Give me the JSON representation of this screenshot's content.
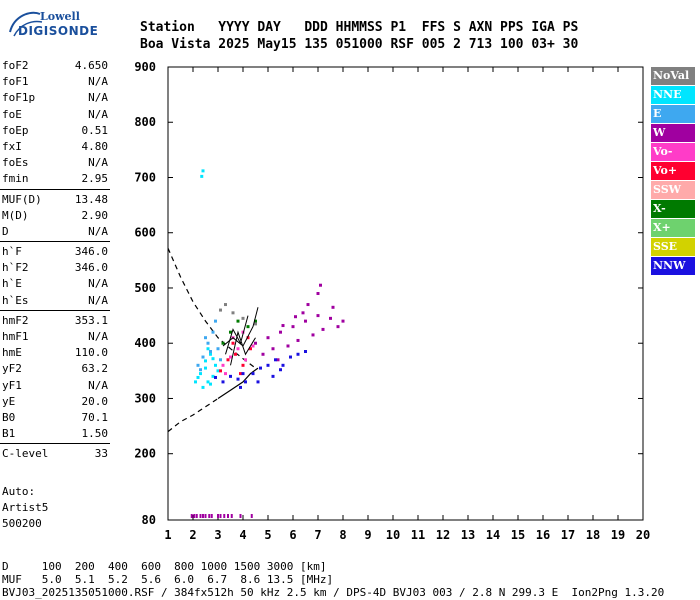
{
  "logo": {
    "line1": "Lowell",
    "line2": "DIGISONDE"
  },
  "header": {
    "line1": "Station   YYYY DAY   DDD HHMMSS P1  FFS S AXN PPS IGA PS",
    "line2": "Boa Vista 2025 May15 135 051000 RSF 005 2 713 100 03+ 30"
  },
  "params": [
    {
      "name": "foF2",
      "value": "4.650"
    },
    {
      "name": "foF1",
      "value": "N/A"
    },
    {
      "name": "foF1p",
      "value": "N/A"
    },
    {
      "name": "foE",
      "value": "N/A"
    },
    {
      "name": "foEp",
      "value": "0.51"
    },
    {
      "name": "fxI",
      "value": "4.80"
    },
    {
      "name": "foEs",
      "value": "N/A"
    },
    {
      "name": "fmin",
      "value": "2.95"
    },
    {
      "sep": true
    },
    {
      "name": "MUF(D)",
      "value": "13.48"
    },
    {
      "name": "M(D)",
      "value": "2.90"
    },
    {
      "name": "D",
      "value": "N/A"
    },
    {
      "sep": true
    },
    {
      "name": "h`F",
      "value": "346.0"
    },
    {
      "name": "h`F2",
      "value": "346.0"
    },
    {
      "name": "h`E",
      "value": "N/A"
    },
    {
      "name": "h`Es",
      "value": "N/A"
    },
    {
      "sep": true
    },
    {
      "name": "hmF2",
      "value": "353.1"
    },
    {
      "name": "hmF1",
      "value": "N/A"
    },
    {
      "name": "hmE",
      "value": "110.0"
    },
    {
      "name": "yF2",
      "value": "63.2"
    },
    {
      "name": "yF1",
      "value": "N/A"
    },
    {
      "name": "yE",
      "value": "20.0"
    },
    {
      "name": "B0",
      "value": "70.1"
    },
    {
      "name": "B1",
      "value": "1.50"
    },
    {
      "sep": true
    },
    {
      "name": "C-level",
      "value": "33"
    }
  ],
  "auto": {
    "line1": "Auto:",
    "line2": "Artist5",
    "line3": "500200"
  },
  "legend": [
    {
      "label": "NoVal",
      "color": "#808080"
    },
    {
      "label": "NNE",
      "color": "#00e5ff"
    },
    {
      "label": "E",
      "color": "#3ea8f0"
    },
    {
      "label": "W",
      "color": "#a000a0"
    },
    {
      "label": "Vo-",
      "color": "#ff3cc8"
    },
    {
      "label": "Vo+",
      "color": "#ff0030"
    },
    {
      "label": "SSW",
      "color": "#ffaaaa"
    },
    {
      "label": "X-",
      "color": "#007a00"
    },
    {
      "label": "X+",
      "color": "#6ed26e"
    },
    {
      "label": "SSE",
      "color": "#d2d200"
    },
    {
      "label": "NNW",
      "color": "#1a10e0"
    }
  ],
  "bottom": {
    "line1": "D     100  200  400  600  800 1000 1500 3000 [km]",
    "line2": "MUF   5.0  5.1  5.2  5.6  6.0  6.7  8.6 13.5 [MHz]",
    "line3": "BVJ03_2025135051000.RSF / 384fx512h 50 kHz 2.5 km / DPS-4D BVJ03 003 / 2.8 N 299.3 E  Ion2Png 1.3.20"
  },
  "chart_data": {
    "type": "scatter",
    "xlim": [
      1,
      20
    ],
    "ylim": [
      80,
      900
    ],
    "xticks": [
      1,
      2,
      3,
      4,
      5,
      6,
      7,
      8,
      9,
      10,
      11,
      12,
      13,
      14,
      15,
      16,
      17,
      18,
      19,
      20
    ],
    "yticks": [
      80,
      200,
      300,
      400,
      500,
      600,
      700,
      800,
      900
    ],
    "grid": false,
    "series": [
      {
        "name": "NNE",
        "color": "#00e5ff",
        "points": [
          [
            2.1,
            330
          ],
          [
            2.3,
            345
          ],
          [
            2.5,
            355
          ],
          [
            2.6,
            330
          ],
          [
            2.7,
            380
          ],
          [
            2.8,
            340
          ],
          [
            2.9,
            360
          ],
          [
            2.4,
            320
          ],
          [
            2.6,
            390
          ],
          [
            2.2,
            338
          ],
          [
            2.8,
            372
          ],
          [
            3.0,
            350
          ],
          [
            2.5,
            368
          ],
          [
            2.7,
            326
          ],
          [
            2.35,
            702
          ],
          [
            2.4,
            712
          ]
        ]
      },
      {
        "name": "E",
        "color": "#3ea8f0",
        "points": [
          [
            2.2,
            360
          ],
          [
            2.4,
            375
          ],
          [
            2.6,
            400
          ],
          [
            2.8,
            420
          ],
          [
            3.0,
            390
          ],
          [
            2.5,
            410
          ],
          [
            2.9,
            440
          ],
          [
            3.1,
            370
          ],
          [
            2.7,
            385
          ],
          [
            2.3,
            352
          ]
        ]
      },
      {
        "name": "W",
        "color": "#a000a0",
        "points": [
          [
            4.5,
            400
          ],
          [
            5.0,
            410
          ],
          [
            5.5,
            420
          ],
          [
            6.0,
            430
          ],
          [
            6.5,
            440
          ],
          [
            7.0,
            450
          ],
          [
            7.5,
            445
          ],
          [
            8.0,
            440
          ],
          [
            5.2,
            390
          ],
          [
            5.8,
            395
          ],
          [
            6.2,
            405
          ],
          [
            6.8,
            415
          ],
          [
            7.2,
            425
          ],
          [
            7.6,
            465
          ],
          [
            7.0,
            490
          ],
          [
            6.4,
            455
          ],
          [
            5.4,
            370
          ],
          [
            4.8,
            380
          ],
          [
            6.6,
            470
          ],
          [
            7.8,
            430
          ],
          [
            7.1,
            505
          ],
          [
            5.6,
            432
          ],
          [
            6.1,
            448
          ]
        ]
      },
      {
        "name": "Vo-",
        "color": "#ff3cc8",
        "points": [
          [
            3.2,
            360
          ],
          [
            3.5,
            375
          ],
          [
            3.8,
            390
          ],
          [
            4.1,
            370
          ],
          [
            4.4,
            395
          ],
          [
            3.6,
            410
          ],
          [
            4.0,
            420
          ],
          [
            3.3,
            345
          ]
        ]
      },
      {
        "name": "Vo+",
        "color": "#ff0030",
        "points": [
          [
            3.1,
            350
          ],
          [
            3.4,
            370
          ],
          [
            3.7,
            380
          ],
          [
            4.0,
            360
          ],
          [
            4.3,
            390
          ],
          [
            3.6,
            400
          ],
          [
            3.9,
            345
          ],
          [
            4.2,
            410
          ]
        ]
      },
      {
        "name": "X-",
        "color": "#007a00",
        "points": [
          [
            3.5,
            420
          ],
          [
            3.8,
            440
          ],
          [
            4.2,
            430
          ],
          [
            3.2,
            400
          ],
          [
            4.5,
            440
          ]
        ]
      },
      {
        "name": "NNW",
        "color": "#1a10e0",
        "points": [
          [
            3.2,
            330
          ],
          [
            3.5,
            340
          ],
          [
            3.8,
            335
          ],
          [
            4.1,
            330
          ],
          [
            4.4,
            345
          ],
          [
            4.7,
            355
          ],
          [
            5.0,
            360
          ],
          [
            5.3,
            370
          ],
          [
            5.6,
            360
          ],
          [
            5.9,
            375
          ],
          [
            6.2,
            380
          ],
          [
            6.5,
            385
          ],
          [
            3.9,
            320
          ],
          [
            4.6,
            330
          ],
          [
            5.2,
            340
          ],
          [
            2.9,
            338
          ],
          [
            4.0,
            345
          ],
          [
            5.5,
            352
          ]
        ]
      },
      {
        "name": "NoVal",
        "color": "#808080",
        "points": [
          [
            3.1,
            460
          ],
          [
            3.3,
            470
          ],
          [
            3.6,
            455
          ],
          [
            4.0,
            445
          ],
          [
            4.5,
            435
          ]
        ]
      }
    ],
    "bottom_marks": {
      "color": "#a000a0",
      "x": [
        1.95,
        2.05,
        2.15,
        2.3,
        2.4,
        2.5,
        2.65,
        2.75,
        3.0,
        3.1,
        3.25,
        3.4,
        3.55,
        3.9,
        4.35
      ]
    },
    "profile_dashed": [
      [
        1,
        572
      ],
      [
        1.5,
        520
      ],
      [
        2,
        475
      ],
      [
        2.5,
        440
      ],
      [
        3,
        410
      ],
      [
        3.5,
        390
      ],
      [
        4,
        372
      ],
      [
        4.5,
        355
      ]
    ],
    "profile_dashed_low": [
      [
        1,
        240
      ],
      [
        1.5,
        258
      ],
      [
        2,
        270
      ],
      [
        2.5,
        285
      ],
      [
        3,
        300
      ]
    ],
    "profile_solid": [
      [
        3,
        300
      ],
      [
        3.5,
        315
      ],
      [
        4,
        330
      ],
      [
        4.3,
        345
      ],
      [
        4.6,
        355
      ]
    ],
    "trace_segments": [
      [
        [
          3.3,
          380
        ],
        [
          3.6,
          425
        ],
        [
          3.9,
          400
        ],
        [
          4.2,
          450
        ]
      ],
      [
        [
          3.5,
          360
        ],
        [
          3.8,
          420
        ],
        [
          4.1,
          380
        ],
        [
          4.5,
          410
        ]
      ],
      [
        [
          3.2,
          395
        ],
        [
          3.6,
          410
        ],
        [
          4.0,
          395
        ],
        [
          4.4,
          430
        ],
        [
          4.6,
          465
        ]
      ]
    ]
  }
}
